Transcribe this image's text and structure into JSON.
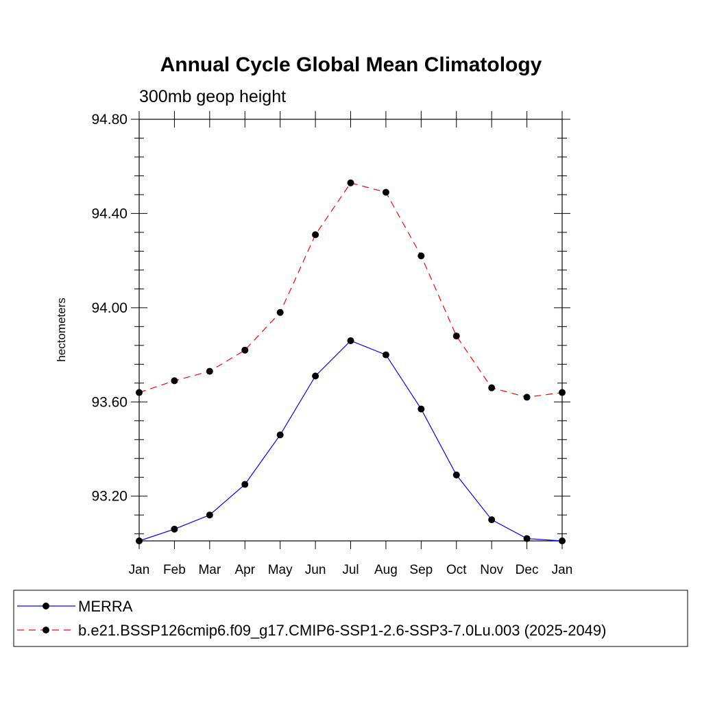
{
  "chart_data": {
    "type": "line",
    "title": "Annual Cycle Global Mean Climatology",
    "subtitle": "300mb geop height",
    "xlabel": "",
    "ylabel": "hectometers",
    "categories": [
      "Jan",
      "Feb",
      "Mar",
      "Apr",
      "May",
      "Jun",
      "Jul",
      "Aug",
      "Sep",
      "Oct",
      "Nov",
      "Dec",
      "Jan"
    ],
    "ylim": [
      93.01,
      94.8
    ],
    "y_ticks": [
      "94.80",
      "94.40",
      "94.00",
      "93.60",
      "93.20"
    ],
    "grid": false,
    "legend_position": "bottom",
    "series": [
      {
        "name": "MERRA",
        "color": "#0000ff",
        "dash": "solid",
        "values": [
          93.01,
          93.06,
          93.12,
          93.25,
          93.46,
          93.71,
          93.86,
          93.8,
          93.57,
          93.29,
          93.1,
          93.02,
          93.01
        ]
      },
      {
        "name": "b.e21.BSSP126cmip6.f09_g17.CMIP6-SSP1-2.6-SSP3-7.0Lu.003 (2025-2049)",
        "color": "#ff0000",
        "dash": "dashed",
        "values": [
          93.64,
          93.69,
          93.73,
          93.82,
          93.98,
          94.31,
          94.53,
          94.49,
          94.22,
          93.88,
          93.66,
          93.62,
          93.64
        ]
      }
    ]
  }
}
